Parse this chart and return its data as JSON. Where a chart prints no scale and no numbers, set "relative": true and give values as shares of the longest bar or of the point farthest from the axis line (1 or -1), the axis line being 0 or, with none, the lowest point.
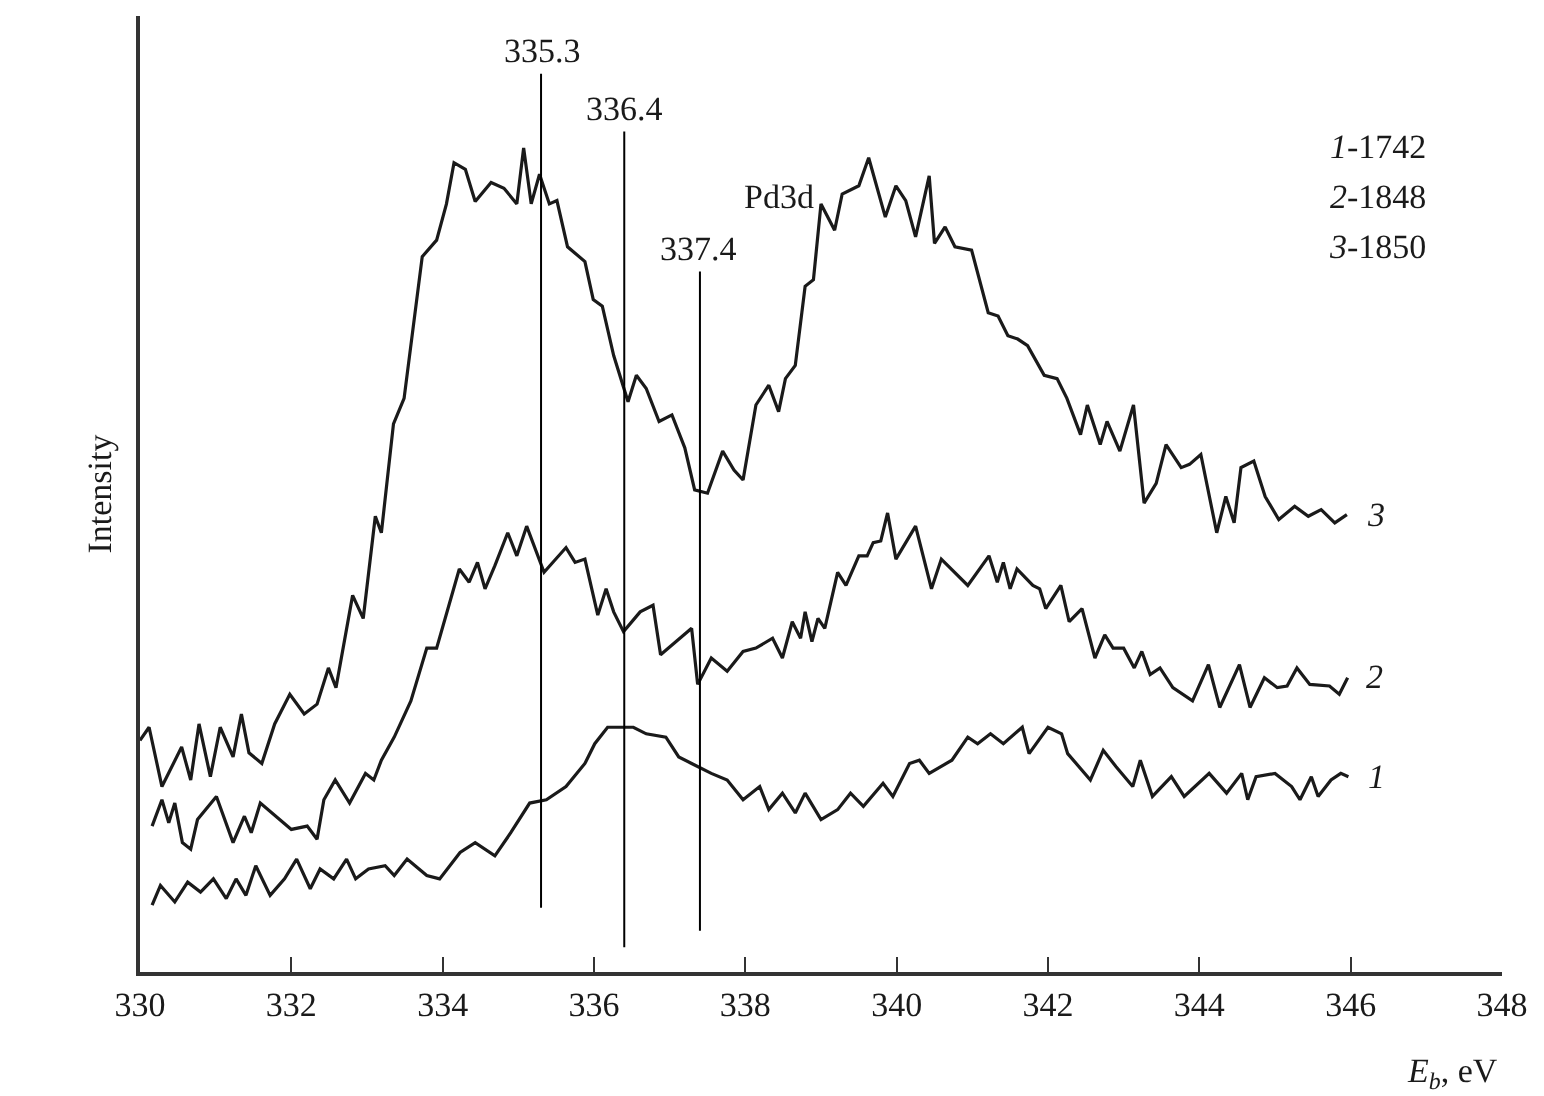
{
  "chart_data": {
    "type": "line",
    "relative": true,
    "xlabel": "E$_{b}$, eV",
    "ylabel": "Intensity",
    "xlim": [
      330,
      348
    ],
    "xticks": [
      330,
      332,
      334,
      336,
      338,
      340,
      342,
      344,
      346,
      348
    ],
    "legend": false,
    "marker": "none",
    "line_style": "solid",
    "annotations": [
      "Pd3d",
      "1-1742",
      "2-1848",
      "3-1850"
    ],
    "ref_lines": [
      {
        "axis": "x",
        "value": 335.3,
        "label": "335.3",
        "color": "#000000"
      },
      {
        "axis": "x",
        "value": 336.4,
        "label": "336.4",
        "color": "#000000"
      },
      {
        "axis": "x",
        "value": 337.4,
        "label": "337.4",
        "color": "#000000"
      }
    ],
    "series": [
      {
        "name": "1",
        "color": "#1a1a1a",
        "x": [
          330.16,
          330.27,
          330.46,
          330.63,
          330.8,
          330.97,
          331.14,
          331.27,
          331.4,
          331.53,
          331.72,
          331.91,
          332.07,
          332.25,
          332.38,
          332.56,
          332.73,
          332.85,
          333.02,
          333.24,
          333.36,
          333.53,
          333.79,
          333.96,
          334.23,
          334.43,
          334.69,
          334.9,
          335.15,
          335.37,
          335.63,
          335.88,
          336.01,
          336.18,
          336.39,
          336.52,
          336.69,
          336.95,
          337.12,
          337.29,
          337.55,
          337.76,
          337.97,
          338.19,
          338.31,
          338.49,
          338.66,
          338.79,
          339.0,
          339.22,
          339.39,
          339.56,
          339.82,
          339.95,
          340.17,
          340.3,
          340.43,
          340.73,
          340.94,
          341.07,
          341.24,
          341.41,
          341.66,
          341.75,
          342.0,
          342.18,
          342.26,
          342.56,
          342.73,
          342.9,
          343.12,
          343.22,
          343.38,
          343.63,
          343.8,
          344.13,
          344.36,
          344.56,
          344.64,
          344.75,
          345.0,
          345.22,
          345.33,
          345.48,
          345.57,
          345.74,
          345.87,
          345.97
        ],
        "values": [
          0.081,
          0.105,
          0.085,
          0.109,
          0.097,
          0.113,
          0.089,
          0.113,
          0.093,
          0.129,
          0.093,
          0.113,
          0.137,
          0.101,
          0.125,
          0.113,
          0.137,
          0.113,
          0.125,
          0.129,
          0.117,
          0.137,
          0.117,
          0.113,
          0.145,
          0.157,
          0.141,
          0.169,
          0.205,
          0.209,
          0.225,
          0.253,
          0.277,
          0.297,
          0.297,
          0.297,
          0.289,
          0.285,
          0.261,
          0.253,
          0.241,
          0.233,
          0.209,
          0.225,
          0.197,
          0.217,
          0.193,
          0.217,
          0.185,
          0.197,
          0.217,
          0.201,
          0.229,
          0.213,
          0.253,
          0.257,
          0.241,
          0.257,
          0.285,
          0.277,
          0.289,
          0.277,
          0.297,
          0.265,
          0.297,
          0.289,
          0.265,
          0.233,
          0.269,
          0.249,
          0.225,
          0.257,
          0.213,
          0.237,
          0.213,
          0.241,
          0.217,
          0.241,
          0.209,
          0.237,
          0.241,
          0.225,
          0.209,
          0.237,
          0.213,
          0.233,
          0.241,
          0.237
        ]
      },
      {
        "name": "2",
        "color": "#1a1a1a",
        "x": [
          330.16,
          330.29,
          330.38,
          330.46,
          330.56,
          330.67,
          330.76,
          331.01,
          331.23,
          331.38,
          331.47,
          331.59,
          332.0,
          332.21,
          332.34,
          332.43,
          332.58,
          332.77,
          332.98,
          333.09,
          333.19,
          333.36,
          333.58,
          333.79,
          333.92,
          334.22,
          334.35,
          334.46,
          334.56,
          334.69,
          334.86,
          334.98,
          335.11,
          335.34,
          335.63,
          335.75,
          335.88,
          336.05,
          336.16,
          336.26,
          336.39,
          336.61,
          336.78,
          336.88,
          337.29,
          337.37,
          337.55,
          337.76,
          337.97,
          338.14,
          338.36,
          338.49,
          338.62,
          338.73,
          338.79,
          338.88,
          338.96,
          339.05,
          339.22,
          339.33,
          339.5,
          339.61,
          339.69,
          339.79,
          339.88,
          339.99,
          340.25,
          340.46,
          340.59,
          340.94,
          341.22,
          341.33,
          341.41,
          341.5,
          341.59,
          341.8,
          341.89,
          341.97,
          342.17,
          342.28,
          342.45,
          342.62,
          342.75,
          342.86,
          343.0,
          343.14,
          343.24,
          343.35,
          343.48,
          343.65,
          343.91,
          344.12,
          344.27,
          344.53,
          344.67,
          344.86,
          345.03,
          345.16,
          345.29,
          345.46,
          345.72,
          345.85,
          345.96
        ],
        "values": [
          0.177,
          0.209,
          0.181,
          0.205,
          0.157,
          0.149,
          0.185,
          0.213,
          0.157,
          0.189,
          0.169,
          0.205,
          0.173,
          0.177,
          0.161,
          0.209,
          0.233,
          0.205,
          0.241,
          0.233,
          0.257,
          0.285,
          0.329,
          0.393,
          0.393,
          0.489,
          0.473,
          0.497,
          0.465,
          0.493,
          0.533,
          0.505,
          0.541,
          0.485,
          0.515,
          0.497,
          0.501,
          0.433,
          0.465,
          0.437,
          0.413,
          0.437,
          0.445,
          0.385,
          0.417,
          0.349,
          0.381,
          0.365,
          0.389,
          0.393,
          0.405,
          0.381,
          0.425,
          0.405,
          0.437,
          0.401,
          0.429,
          0.417,
          0.485,
          0.469,
          0.505,
          0.505,
          0.521,
          0.523,
          0.557,
          0.501,
          0.541,
          0.465,
          0.501,
          0.469,
          0.505,
          0.473,
          0.497,
          0.465,
          0.489,
          0.469,
          0.465,
          0.441,
          0.469,
          0.425,
          0.441,
          0.381,
          0.409,
          0.393,
          0.393,
          0.369,
          0.389,
          0.361,
          0.369,
          0.345,
          0.329,
          0.373,
          0.321,
          0.373,
          0.321,
          0.357,
          0.345,
          0.347,
          0.369,
          0.349,
          0.347,
          0.337,
          0.357
        ]
      },
      {
        "name": "3",
        "color": "#1a1a1a",
        "x": [
          330.0,
          330.12,
          330.29,
          330.55,
          330.67,
          330.78,
          330.93,
          331.06,
          331.23,
          331.34,
          331.44,
          331.61,
          331.78,
          331.98,
          332.17,
          332.34,
          332.49,
          332.59,
          332.81,
          332.95,
          333.11,
          333.19,
          333.35,
          333.49,
          333.73,
          333.92,
          334.05,
          334.15,
          334.3,
          334.43,
          334.64,
          334.81,
          334.98,
          335.07,
          335.17,
          335.28,
          335.41,
          335.51,
          335.65,
          335.88,
          335.99,
          336.11,
          336.26,
          336.45,
          336.56,
          336.69,
          336.86,
          337.03,
          337.2,
          337.33,
          337.5,
          337.7,
          337.85,
          337.97,
          338.14,
          338.31,
          338.44,
          338.53,
          338.66,
          338.79,
          338.9,
          339.0,
          339.18,
          339.28,
          339.5,
          339.63,
          339.85,
          339.99,
          340.12,
          340.25,
          340.43,
          340.5,
          340.64,
          340.77,
          340.99,
          341.21,
          341.34,
          341.47,
          341.6,
          341.73,
          341.95,
          342.12,
          342.25,
          342.43,
          342.52,
          342.69,
          342.78,
          342.95,
          343.13,
          343.27,
          343.43,
          343.56,
          343.76,
          343.87,
          344.02,
          344.23,
          344.35,
          344.46,
          344.55,
          344.72,
          344.87,
          345.05,
          345.26,
          345.44,
          345.61,
          345.79,
          345.95
        ],
        "values": [
          0.281,
          0.297,
          0.225,
          0.273,
          0.233,
          0.301,
          0.237,
          0.297,
          0.261,
          0.313,
          0.266,
          0.253,
          0.301,
          0.337,
          0.313,
          0.325,
          0.369,
          0.345,
          0.457,
          0.429,
          0.553,
          0.533,
          0.665,
          0.696,
          0.868,
          0.888,
          0.932,
          0.982,
          0.974,
          0.935,
          0.958,
          0.951,
          0.932,
          1.0,
          0.932,
          0.968,
          0.932,
          0.936,
          0.88,
          0.862,
          0.816,
          0.808,
          0.748,
          0.692,
          0.724,
          0.708,
          0.668,
          0.676,
          0.636,
          0.585,
          0.581,
          0.632,
          0.609,
          0.597,
          0.688,
          0.712,
          0.68,
          0.72,
          0.736,
          0.832,
          0.84,
          0.932,
          0.9,
          0.944,
          0.954,
          0.988,
          0.916,
          0.954,
          0.936,
          0.892,
          0.966,
          0.884,
          0.904,
          0.88,
          0.876,
          0.8,
          0.796,
          0.772,
          0.768,
          0.76,
          0.724,
          0.72,
          0.696,
          0.652,
          0.688,
          0.64,
          0.668,
          0.632,
          0.688,
          0.569,
          0.593,
          0.64,
          0.612,
          0.616,
          0.628,
          0.533,
          0.577,
          0.545,
          0.612,
          0.62,
          0.577,
          0.549,
          0.565,
          0.553,
          0.561,
          0.545,
          0.555
        ]
      }
    ]
  }
}
